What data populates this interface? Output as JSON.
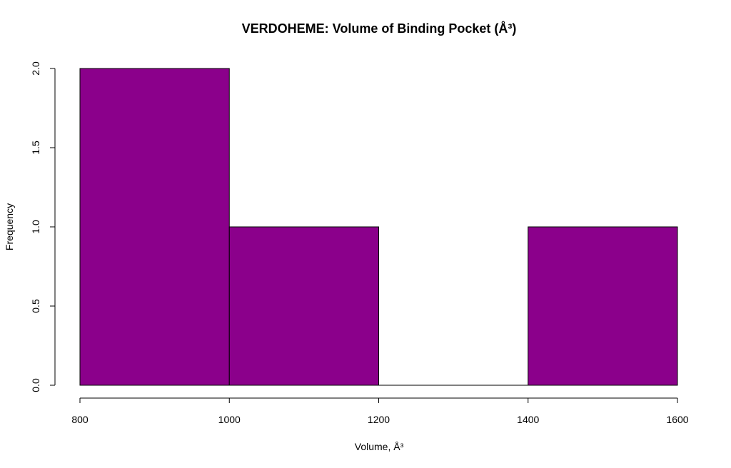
{
  "chart_data": {
    "type": "bar",
    "subtype": "histogram",
    "title": "VERDOHEME: Volume of Binding Pocket (Å³)",
    "xlabel": "Volume, Å³",
    "ylabel": "Frequency",
    "bins": [
      {
        "start": 800,
        "end": 1000,
        "count": 2
      },
      {
        "start": 1000,
        "end": 1200,
        "count": 1
      },
      {
        "start": 1200,
        "end": 1400,
        "count": 0
      },
      {
        "start": 1400,
        "end": 1600,
        "count": 1
      }
    ],
    "xlim": [
      800,
      1600
    ],
    "ylim": [
      0,
      2
    ],
    "x_ticks": [
      800,
      1000,
      1200,
      1400,
      1600
    ],
    "x_tick_labels": [
      "800",
      "1000",
      "1200",
      "1400",
      "1600"
    ],
    "y_ticks": [
      0,
      0.5,
      1,
      1.5,
      2
    ],
    "y_tick_labels": [
      "0.0",
      "0.5",
      "1.0",
      "1.5",
      "2.0"
    ],
    "bar_color": "#8B008B",
    "edge_color": "#000000",
    "grid": false,
    "legend": "none"
  }
}
